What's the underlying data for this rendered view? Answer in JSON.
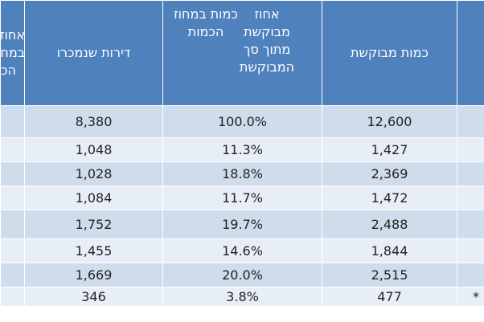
{
  "headers": {
    "col_partial": "אחוז במחוז הכ",
    "col_sold": "דירות שנמכרו",
    "col_pct": "אחוז מבוקשת מתוך סך המבוקשת",
    "col_region_qty": "כמות במחוז הכמות",
    "col_requested": "כמות מבוקשת",
    "col_blank": ""
  },
  "rows": [
    {
      "sold": "8,380",
      "pct": "100.0%",
      "requested": "12,600",
      "mark": ""
    },
    {
      "sold": "1,048",
      "pct": "11.3%",
      "requested": "1,427",
      "mark": ""
    },
    {
      "sold": "1,028",
      "pct": "18.8%",
      "requested": "2,369",
      "mark": ""
    },
    {
      "sold": "1,084",
      "pct": "11.7%",
      "requested": "1,472",
      "mark": ""
    },
    {
      "sold": "1,752",
      "pct": "19.7%",
      "requested": "2,488",
      "mark": ""
    },
    {
      "sold": "1,455",
      "pct": "14.6%",
      "requested": "1,844",
      "mark": ""
    },
    {
      "sold": "1,669",
      "pct": "20.0%",
      "requested": "2,515",
      "mark": ""
    },
    {
      "sold": "346",
      "pct": "3.8%",
      "requested": "477",
      "mark": "*"
    }
  ],
  "colors": {
    "header_bg": "#4f81bd",
    "row_odd": "#cfdcec",
    "row_even": "#e8eef7"
  }
}
